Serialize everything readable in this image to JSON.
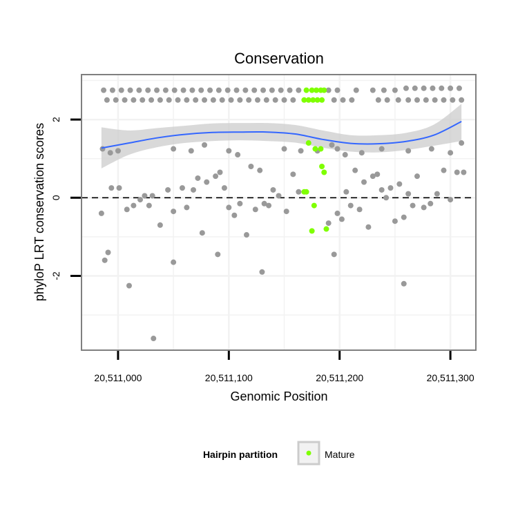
{
  "chart_data": {
    "type": "scatter",
    "title": "Conservation",
    "xlabel": "Genomic Position",
    "ylabel": "phyloP LRT conservation scores",
    "xlim": [
      20510967,
      20511323
    ],
    "ylim": [
      -3.9,
      3.15
    ],
    "x_ticks": [
      20511000,
      20511100,
      20511200,
      20511300
    ],
    "x_tick_labels": [
      "20,511,000",
      "20,511,100",
      "20,511,200",
      "20,511,300"
    ],
    "y_ticks": [
      -2,
      0,
      2
    ],
    "y_tick_labels": [
      "-2",
      "0",
      "2"
    ],
    "reference_line": {
      "y": 0,
      "style": "dashed"
    },
    "grid": true,
    "legend": {
      "title": "Hairpin partition",
      "position": "bottom",
      "entries": [
        "Mature"
      ]
    },
    "colors": {
      "other": "#999999",
      "mature": "#7fff00",
      "smooth": "#3366ff",
      "ribbon": "#cccccc",
      "panel_border": "#7f7f7f",
      "grid": "#f2f2f2"
    },
    "smooth_curve": [
      {
        "x": 20510985,
        "y": 1.27,
        "lo": 0.75,
        "hi": 1.8
      },
      {
        "x": 20511010,
        "y": 1.4,
        "lo": 1.1,
        "hi": 1.72
      },
      {
        "x": 20511035,
        "y": 1.53,
        "lo": 1.29,
        "hi": 1.78
      },
      {
        "x": 20511060,
        "y": 1.62,
        "lo": 1.4,
        "hi": 1.84
      },
      {
        "x": 20511085,
        "y": 1.67,
        "lo": 1.45,
        "hi": 1.9
      },
      {
        "x": 20511110,
        "y": 1.68,
        "lo": 1.47,
        "hi": 1.91
      },
      {
        "x": 20511135,
        "y": 1.68,
        "lo": 1.45,
        "hi": 1.91
      },
      {
        "x": 20511160,
        "y": 1.63,
        "lo": 1.41,
        "hi": 1.86
      },
      {
        "x": 20511185,
        "y": 1.49,
        "lo": 1.28,
        "hi": 1.72
      },
      {
        "x": 20511210,
        "y": 1.39,
        "lo": 1.18,
        "hi": 1.6
      },
      {
        "x": 20511235,
        "y": 1.38,
        "lo": 1.16,
        "hi": 1.6
      },
      {
        "x": 20511260,
        "y": 1.44,
        "lo": 1.22,
        "hi": 1.66
      },
      {
        "x": 20511285,
        "y": 1.6,
        "lo": 1.33,
        "hi": 1.87
      },
      {
        "x": 20511310,
        "y": 1.95,
        "lo": 1.45,
        "hi": 2.4
      }
    ],
    "series": [
      {
        "name": "Other",
        "points": [
          [
            20510987,
            2.75
          ],
          [
            20510995,
            2.75
          ],
          [
            20511003,
            2.75
          ],
          [
            20511011,
            2.75
          ],
          [
            20511019,
            2.75
          ],
          [
            20511027,
            2.75
          ],
          [
            20511035,
            2.75
          ],
          [
            20511043,
            2.75
          ],
          [
            20511051,
            2.75
          ],
          [
            20511059,
            2.75
          ],
          [
            20511067,
            2.75
          ],
          [
            20511075,
            2.75
          ],
          [
            20511083,
            2.75
          ],
          [
            20511091,
            2.75
          ],
          [
            20511099,
            2.75
          ],
          [
            20511107,
            2.75
          ],
          [
            20511115,
            2.75
          ],
          [
            20511123,
            2.75
          ],
          [
            20511131,
            2.75
          ],
          [
            20511139,
            2.75
          ],
          [
            20511147,
            2.75
          ],
          [
            20511155,
            2.75
          ],
          [
            20511163,
            2.75
          ],
          [
            20511190,
            2.75
          ],
          [
            20511198,
            2.75
          ],
          [
            20511215,
            2.75
          ],
          [
            20511230,
            2.75
          ],
          [
            20511240,
            2.75
          ],
          [
            20511250,
            2.75
          ],
          [
            20511260,
            2.8
          ],
          [
            20511268,
            2.8
          ],
          [
            20511276,
            2.8
          ],
          [
            20511284,
            2.8
          ],
          [
            20511292,
            2.8
          ],
          [
            20511300,
            2.8
          ],
          [
            20511308,
            2.8
          ],
          [
            20510990,
            2.5
          ],
          [
            20510998,
            2.5
          ],
          [
            20511006,
            2.5
          ],
          [
            20511014,
            2.5
          ],
          [
            20511022,
            2.5
          ],
          [
            20511030,
            2.5
          ],
          [
            20511038,
            2.5
          ],
          [
            20511046,
            2.5
          ],
          [
            20511054,
            2.5
          ],
          [
            20511062,
            2.5
          ],
          [
            20511070,
            2.5
          ],
          [
            20511078,
            2.5
          ],
          [
            20511086,
            2.5
          ],
          [
            20511094,
            2.5
          ],
          [
            20511102,
            2.5
          ],
          [
            20511110,
            2.5
          ],
          [
            20511118,
            2.5
          ],
          [
            20511126,
            2.5
          ],
          [
            20511134,
            2.5
          ],
          [
            20511142,
            2.5
          ],
          [
            20511150,
            2.5
          ],
          [
            20511158,
            2.5
          ],
          [
            20511195,
            2.5
          ],
          [
            20511203,
            2.5
          ],
          [
            20511211,
            2.5
          ],
          [
            20511235,
            2.5
          ],
          [
            20511243,
            2.5
          ],
          [
            20511253,
            2.5
          ],
          [
            20511262,
            2.5
          ],
          [
            20511270,
            2.5
          ],
          [
            20511278,
            2.5
          ],
          [
            20511286,
            2.5
          ],
          [
            20511294,
            2.5
          ],
          [
            20511302,
            2.5
          ],
          [
            20511310,
            2.5
          ],
          [
            20510986,
            1.25
          ],
          [
            20510993,
            1.15
          ],
          [
            20511000,
            1.2
          ],
          [
            20511050,
            1.25
          ],
          [
            20511066,
            1.2
          ],
          [
            20511078,
            1.35
          ],
          [
            20511100,
            1.2
          ],
          [
            20511108,
            1.1
          ],
          [
            20511150,
            1.25
          ],
          [
            20511165,
            1.2
          ],
          [
            20511180,
            1.2
          ],
          [
            20511193,
            1.35
          ],
          [
            20511198,
            1.25
          ],
          [
            20511205,
            1.1
          ],
          [
            20511220,
            1.15
          ],
          [
            20511238,
            1.25
          ],
          [
            20511262,
            1.2
          ],
          [
            20511283,
            1.25
          ],
          [
            20511300,
            1.15
          ],
          [
            20511310,
            1.4
          ],
          [
            20510994,
            0.25
          ],
          [
            20511001,
            0.25
          ],
          [
            20511008,
            -0.3
          ],
          [
            20511014,
            -0.2
          ],
          [
            20511020,
            -0.05
          ],
          [
            20511024,
            0.05
          ],
          [
            20511028,
            -0.2
          ],
          [
            20511031,
            0.05
          ],
          [
            20511038,
            -0.7
          ],
          [
            20511045,
            0.2
          ],
          [
            20511050,
            -0.35
          ],
          [
            20511058,
            0.25
          ],
          [
            20511062,
            -0.25
          ],
          [
            20511068,
            0.2
          ],
          [
            20511072,
            0.5
          ],
          [
            20511076,
            -0.9
          ],
          [
            20511080,
            0.4
          ],
          [
            20511088,
            0.55
          ],
          [
            20511092,
            0.65
          ],
          [
            20511096,
            0.25
          ],
          [
            20511100,
            -0.25
          ],
          [
            20511105,
            -0.45
          ],
          [
            20511110,
            -0.15
          ],
          [
            20511116,
            -0.95
          ],
          [
            20511120,
            0.8
          ],
          [
            20511124,
            -0.3
          ],
          [
            20511128,
            0.7
          ],
          [
            20511132,
            -0.15
          ],
          [
            20511136,
            -0.2
          ],
          [
            20511140,
            0.2
          ],
          [
            20511145,
            0.05
          ],
          [
            20511152,
            -0.35
          ],
          [
            20511158,
            0.6
          ],
          [
            20511163,
            0.15
          ],
          [
            20511190,
            -0.65
          ],
          [
            20511195,
            -1.45
          ],
          [
            20511198,
            -0.4
          ],
          [
            20511202,
            -0.55
          ],
          [
            20511206,
            0.15
          ],
          [
            20511210,
            -0.2
          ],
          [
            20511214,
            0.7
          ],
          [
            20511218,
            -0.3
          ],
          [
            20511222,
            0.4
          ],
          [
            20511226,
            -0.75
          ],
          [
            20511230,
            0.55
          ],
          [
            20511234,
            0.6
          ],
          [
            20511238,
            0.2
          ],
          [
            20511242,
            0.0
          ],
          [
            20511246,
            0.25
          ],
          [
            20511250,
            -0.6
          ],
          [
            20511254,
            0.35
          ],
          [
            20511258,
            -0.5
          ],
          [
            20511262,
            0.1
          ],
          [
            20511266,
            -0.2
          ],
          [
            20511270,
            0.55
          ],
          [
            20511276,
            -0.25
          ],
          [
            20511282,
            -0.15
          ],
          [
            20511288,
            0.1
          ],
          [
            20511294,
            0.7
          ],
          [
            20511300,
            -0.05
          ],
          [
            20511306,
            0.65
          ],
          [
            20511312,
            0.65
          ],
          [
            20510985,
            -0.4
          ],
          [
            20510988,
            -1.6
          ],
          [
            20510991,
            -1.4
          ],
          [
            20511010,
            -2.25
          ],
          [
            20511050,
            -1.65
          ],
          [
            20511090,
            -1.45
          ],
          [
            20511130,
            -1.9
          ],
          [
            20511258,
            -2.2
          ],
          [
            20511032,
            -3.6
          ]
        ]
      },
      {
        "name": "Mature",
        "points": [
          [
            20511170,
            2.75
          ],
          [
            20511175,
            2.75
          ],
          [
            20511179,
            2.75
          ],
          [
            20511183,
            2.75
          ],
          [
            20511186,
            2.75
          ],
          [
            20511168,
            2.5
          ],
          [
            20511172,
            2.5
          ],
          [
            20511176,
            2.5
          ],
          [
            20511180,
            2.5
          ],
          [
            20511184,
            2.5
          ],
          [
            20511172,
            1.4
          ],
          [
            20511178,
            1.25
          ],
          [
            20511183,
            1.25
          ],
          [
            20511184,
            0.8
          ],
          [
            20511186,
            0.65
          ],
          [
            20511170,
            0.15
          ],
          [
            20511168,
            0.15
          ],
          [
            20511177,
            -0.2
          ],
          [
            20511188,
            -0.8
          ],
          [
            20511175,
            -0.85
          ]
        ]
      }
    ]
  }
}
